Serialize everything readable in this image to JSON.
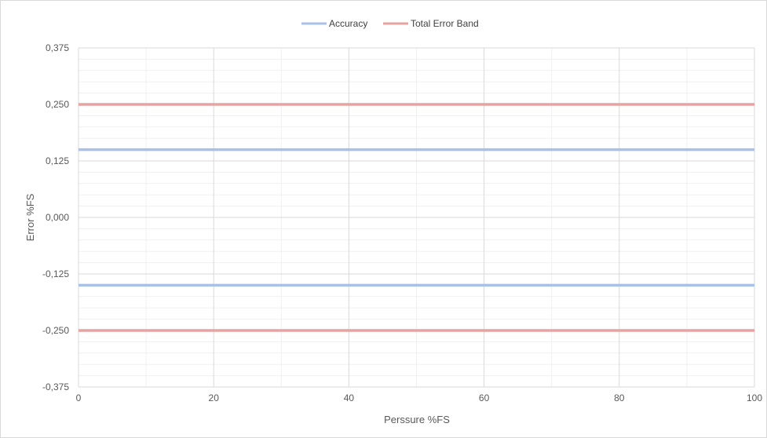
{
  "chart_data": {
    "type": "line",
    "xlabel": "Perssure %FS",
    "ylabel": "Error %FS",
    "xlim": [
      0,
      100
    ],
    "ylim": [
      -0.375,
      0.375
    ],
    "x_ticks": [
      "0",
      "20",
      "40",
      "60",
      "80",
      "100"
    ],
    "y_ticks": [
      "0,375",
      "0,250",
      "0,125",
      "0,000",
      "-0,125",
      "-0,250",
      "-0,375"
    ],
    "grid": true,
    "legend_position": "top",
    "x": [
      0,
      100
    ],
    "series": [
      {
        "name": "Accuracy",
        "color": "#a9c1e6",
        "values": [
          0.15,
          0.15
        ]
      },
      {
        "name": "Accuracy",
        "color": "#a9c1e6",
        "values": [
          -0.15,
          -0.15
        ]
      },
      {
        "name": "Total Error Band",
        "color": "#e6a3a0",
        "values": [
          0.25,
          0.25
        ]
      },
      {
        "name": "Total Error Band",
        "color": "#e6a3a0",
        "values": [
          -0.25,
          -0.25
        ]
      }
    ],
    "legend": [
      {
        "name": "Accuracy",
        "color": "#a9c1e6"
      },
      {
        "name": "Total Error Band",
        "color": "#e6a3a0"
      }
    ]
  }
}
